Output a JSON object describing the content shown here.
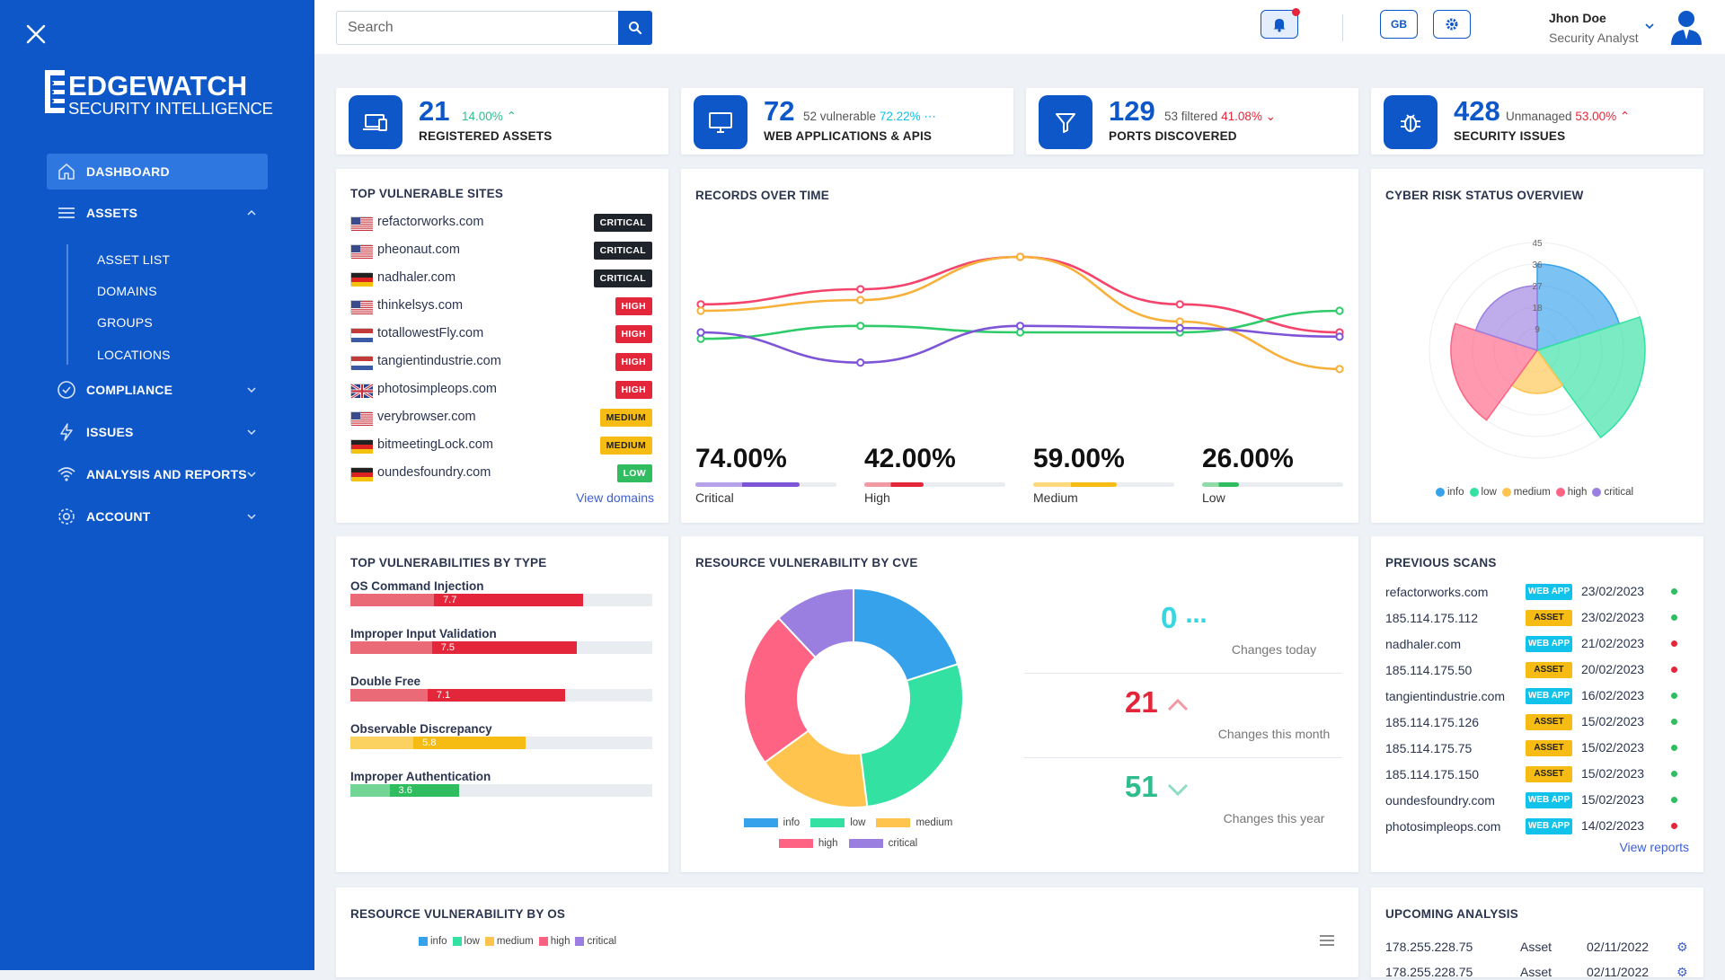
{
  "brand": {
    "name": "EDGEWATCH",
    "tagline": "SECURITY INTELLIGENCE"
  },
  "sidebar": {
    "items": [
      {
        "label": "DASHBOARD",
        "icon": "home-icon",
        "active": true
      },
      {
        "label": "ASSETS",
        "icon": "list-icon",
        "expanded": true
      },
      {
        "label": "COMPLIANCE",
        "icon": "check-circle-icon"
      },
      {
        "label": "ISSUES",
        "icon": "bolt-icon"
      },
      {
        "label": "ANALYSIS AND REPORTS",
        "icon": "wifi-icon"
      },
      {
        "label": "ACCOUNT",
        "icon": "gear-icon"
      }
    ],
    "assets_sub": [
      "ASSET LIST",
      "DOMAINS",
      "GROUPS",
      "LOCATIONS"
    ]
  },
  "topbar": {
    "search_placeholder": "Search",
    "locale_label": "GB",
    "user_name": "Jhon Doe",
    "user_role": "Security Analyst",
    "colors": {
      "primary": "#0d57c9",
      "notification": "#e3263a"
    }
  },
  "stats": [
    {
      "value": "21",
      "extra": "",
      "pct": "14.00%",
      "trend": "up",
      "pct_color": "#2fbd8c",
      "label": "REGISTERED ASSETS",
      "icon": "devices-icon"
    },
    {
      "value": "72",
      "extra": "52 vulnerable",
      "pct": "72.22%",
      "trend": "flat",
      "pct_color": "#11c2ea",
      "label": "WEB APPLICATIONS & APIS",
      "icon": "monitor-icon"
    },
    {
      "value": "129",
      "extra": "53 filtered",
      "pct": "41.08%",
      "trend": "down",
      "pct_color": "#e3263a",
      "label": "PORTS DISCOVERED",
      "icon": "filter-icon"
    },
    {
      "value": "428",
      "extra": "Unmanaged",
      "pct": "53.00%",
      "trend": "up",
      "pct_color": "#e3263a",
      "label": "SECURITY ISSUES",
      "icon": "bug-icon"
    }
  ],
  "top_sites": {
    "title": "TOP VULNERABLE SITES",
    "link": "View domains",
    "rows": [
      {
        "site": "refactorworks.com",
        "flag": "us",
        "severity": "CRITICAL"
      },
      {
        "site": "pheonaut.com",
        "flag": "us",
        "severity": "CRITICAL"
      },
      {
        "site": "nadhaler.com",
        "flag": "de",
        "severity": "CRITICAL"
      },
      {
        "site": "thinkelsys.com",
        "flag": "us",
        "severity": "HIGH"
      },
      {
        "site": "totallowestFly.com",
        "flag": "nl",
        "severity": "HIGH"
      },
      {
        "site": "tangientindustrie.com",
        "flag": "nl",
        "severity": "HIGH"
      },
      {
        "site": "photosimpleops.com",
        "flag": "gb",
        "severity": "HIGH"
      },
      {
        "site": "verybrowser.com",
        "flag": "us",
        "severity": "MEDIUM"
      },
      {
        "site": "bitmeetingLock.com",
        "flag": "de",
        "severity": "MEDIUM"
      },
      {
        "site": "oundesfoundry.com",
        "flag": "de",
        "severity": "LOW"
      }
    ]
  },
  "records": {
    "title": "RECORDS OVER TIME",
    "metrics": [
      {
        "value": "74.00%",
        "label": "Critical",
        "fraction": 0.74,
        "color": "#7d55d6",
        "light": "#b6a2ea"
      },
      {
        "value": "42.00%",
        "label": "High",
        "fraction": 0.42,
        "color": "#e3263a",
        "light": "#f19aa2"
      },
      {
        "value": "59.00%",
        "label": "Medium",
        "fraction": 0.59,
        "color": "#f7bc13",
        "light": "#fbd97c"
      },
      {
        "value": "26.00%",
        "label": "Low",
        "fraction": 0.26,
        "color": "#2fbd60",
        "light": "#8fdca9"
      }
    ]
  },
  "chart_data": [
    {
      "type": "line",
      "title": "RECORDS OVER TIME",
      "x": [
        0,
        1,
        2,
        3,
        4
      ],
      "ylim": [
        0,
        100
      ],
      "series": [
        {
          "values": [
            58,
            65,
            80,
            58,
            45
          ],
          "color": "#f5446b"
        },
        {
          "values": [
            55,
            60,
            80,
            50,
            28
          ],
          "color": "#f7b03a"
        },
        {
          "values": [
            42,
            48,
            45,
            45,
            55
          ],
          "color": "#2fcb6b"
        },
        {
          "values": [
            45,
            31,
            48,
            47,
            43
          ],
          "color": "#7d55d6"
        }
      ]
    },
    {
      "type": "radar",
      "title": "CYBER RISK STATUS OVERVIEW",
      "ticks": [
        "9",
        "18",
        "27",
        "36",
        "45"
      ],
      "rmax": 45,
      "categories": [
        "info",
        "low",
        "medium",
        "high",
        "critical"
      ],
      "values": [
        36,
        45,
        18,
        36,
        27
      ],
      "colors": [
        "#36a2eb",
        "#33e1a2",
        "#ffc44d",
        "#ff6384",
        "#9b7fe0"
      ],
      "legend": "bottom"
    },
    {
      "type": "bar",
      "title": "TOP VULNERABILITIES BY TYPE",
      "categories": [
        "OS Command Injection",
        "Improper Input Validation",
        "Double Free",
        "Observable Discrepancy",
        "Improper Authentication"
      ],
      "values": [
        7.7,
        7.5,
        7.1,
        5.8,
        3.6
      ],
      "xlim": [
        0,
        10
      ]
    },
    {
      "type": "pie",
      "title": "RESOURCE VULNERABILITY BY CVE",
      "categories": [
        "info",
        "low",
        "medium",
        "high",
        "critical"
      ],
      "values": [
        20,
        28,
        17,
        23,
        12
      ],
      "colors": [
        "#36a2eb",
        "#33e1a2",
        "#ffc44d",
        "#ff6384",
        "#9b7fe0"
      ],
      "legend": "bottom"
    }
  ],
  "cve": {
    "today": {
      "value": "0",
      "label": "Changes today",
      "color": "#37d6e0"
    },
    "month": {
      "value": "21",
      "label": "Changes this month",
      "color": "#e3263a"
    },
    "year": {
      "value": "51",
      "label": "Changes this year",
      "color": "#2fbd8c"
    }
  },
  "prev_scans": {
    "title": "PREVIOUS SCANS",
    "link": "View reports",
    "rows": [
      {
        "name": "refactorworks.com",
        "tag": "WEB APP",
        "date": "23/02/2023",
        "status": "#2fbd60"
      },
      {
        "name": "185.114.175.112",
        "tag": "ASSET",
        "date": "23/02/2023",
        "status": "#2fbd60"
      },
      {
        "name": "nadhaler.com",
        "tag": "WEB APP",
        "date": "21/02/2023",
        "status": "#e3263a"
      },
      {
        "name": "185.114.175.50",
        "tag": "ASSET",
        "date": "20/02/2023",
        "status": "#e3263a"
      },
      {
        "name": "tangientindustrie.com",
        "tag": "WEB APP",
        "date": "16/02/2023",
        "status": "#2fbd60"
      },
      {
        "name": "185.114.175.126",
        "tag": "ASSET",
        "date": "15/02/2023",
        "status": "#2fbd60"
      },
      {
        "name": "185.114.175.75",
        "tag": "ASSET",
        "date": "15/02/2023",
        "status": "#2fbd60"
      },
      {
        "name": "185.114.175.150",
        "tag": "ASSET",
        "date": "15/02/2023",
        "status": "#2fbd60"
      },
      {
        "name": "oundesfoundry.com",
        "tag": "WEB APP",
        "date": "15/02/2023",
        "status": "#2fbd60"
      },
      {
        "name": "photosimpleops.com",
        "tag": "WEB APP",
        "date": "14/02/2023",
        "status": "#e3263a"
      }
    ]
  },
  "by_os": {
    "title": "RESOURCE VULNERABILITY BY OS",
    "legend": [
      "info",
      "low",
      "medium",
      "high",
      "critical"
    ]
  },
  "upcoming": {
    "title": "UPCOMING ANALYSIS",
    "rows": [
      {
        "ip": "178.255.228.75",
        "type": "Asset",
        "date": "02/11/2022"
      },
      {
        "ip": "178.255.228.75",
        "type": "Asset",
        "date": "02/11/2022"
      }
    ]
  }
}
